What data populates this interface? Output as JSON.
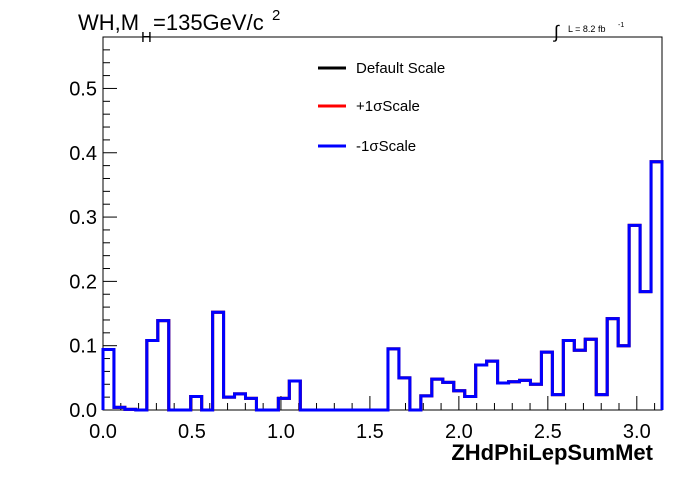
{
  "chart_data": {
    "type": "line",
    "title": {
      "prefix": "WH,M",
      "subscript": "H",
      "main": "=135GeV/c",
      "superscript": "2"
    },
    "luminosity": {
      "integral_symbol": "∫",
      "label": "L = 8.2 fb",
      "superscript": "-1"
    },
    "xlabel": "ZHdPhiLepSumMet",
    "ylabel": "",
    "xlim": [
      0.0,
      3.1416
    ],
    "ylim": [
      0.0,
      0.58
    ],
    "xticks": [
      {
        "value": 0.0,
        "label": "0.0"
      },
      {
        "value": 0.5,
        "label": "0.5"
      },
      {
        "value": 1.0,
        "label": "1.0"
      },
      {
        "value": 1.5,
        "label": "1.5"
      },
      {
        "value": 2.0,
        "label": "2.0"
      },
      {
        "value": 2.5,
        "label": "2.5"
      },
      {
        "value": 3.0,
        "label": "3.0"
      }
    ],
    "yticks": [
      {
        "value": 0.0,
        "label": "0.0"
      },
      {
        "value": 0.1,
        "label": "0.1"
      },
      {
        "value": 0.2,
        "label": "0.2"
      },
      {
        "value": 0.3,
        "label": "0.3"
      },
      {
        "value": 0.4,
        "label": "0.4"
      },
      {
        "value": 0.5,
        "label": "0.5"
      }
    ],
    "bin_edges_min": 0.0,
    "bin_edges_max": 3.1416,
    "series": [
      {
        "name": "Default Scale",
        "color": "#000000",
        "values": [
          0.094,
          0.004,
          0.001,
          0.0,
          0.108,
          0.139,
          0.0,
          0.0,
          0.021,
          0.0,
          0.152,
          0.02,
          0.025,
          0.018,
          0.0,
          0.0,
          0.018,
          0.045,
          0.0,
          0.0,
          0.0,
          0.0,
          0.0,
          0.0,
          0.0,
          0.0,
          0.095,
          0.05,
          0.0,
          0.022,
          0.048,
          0.043,
          0.03,
          0.021,
          0.07,
          0.076,
          0.042,
          0.044,
          0.046,
          0.04,
          0.09,
          0.024,
          0.108,
          0.093,
          0.11,
          0.024,
          0.142,
          0.1,
          0.287,
          0.184,
          0.386
        ]
      },
      {
        "name": "+1σScale",
        "color": "#ff0000",
        "values": [
          0.094,
          0.004,
          0.001,
          0.0,
          0.108,
          0.139,
          0.0,
          0.0,
          0.021,
          0.0,
          0.152,
          0.02,
          0.025,
          0.018,
          0.0,
          0.0,
          0.018,
          0.045,
          0.0,
          0.0,
          0.0,
          0.0,
          0.0,
          0.0,
          0.0,
          0.0,
          0.095,
          0.05,
          0.0,
          0.022,
          0.048,
          0.043,
          0.03,
          0.021,
          0.07,
          0.076,
          0.042,
          0.044,
          0.046,
          0.04,
          0.09,
          0.024,
          0.108,
          0.093,
          0.11,
          0.024,
          0.142,
          0.1,
          0.287,
          0.184,
          0.386
        ]
      },
      {
        "name": "-1σScale",
        "color": "#0000ff",
        "values": [
          0.094,
          0.004,
          0.001,
          0.0,
          0.108,
          0.139,
          0.0,
          0.0,
          0.021,
          0.0,
          0.152,
          0.02,
          0.025,
          0.018,
          0.0,
          0.0,
          0.018,
          0.045,
          0.0,
          0.0,
          0.0,
          0.0,
          0.0,
          0.0,
          0.0,
          0.0,
          0.095,
          0.05,
          0.0,
          0.022,
          0.048,
          0.043,
          0.03,
          0.021,
          0.07,
          0.076,
          0.042,
          0.044,
          0.046,
          0.04,
          0.09,
          0.024,
          0.108,
          0.093,
          0.11,
          0.024,
          0.142,
          0.1,
          0.287,
          0.184,
          0.386
        ]
      }
    ],
    "legend_position": "top-center",
    "grid": false
  }
}
